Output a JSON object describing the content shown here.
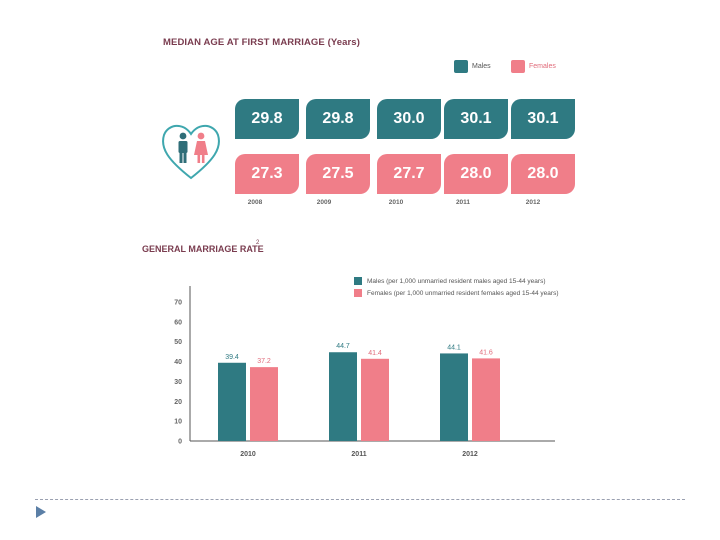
{
  "median_age": {
    "title": "MEDIAN AGE AT FIRST MARRIAGE (Years)",
    "legend": {
      "males": "Males",
      "females": "Females"
    },
    "years": [
      "2008",
      "2009",
      "2010",
      "2011",
      "2012"
    ],
    "males": [
      "29.8",
      "29.8",
      "30.0",
      "30.1",
      "30.1"
    ],
    "females": [
      "27.3",
      "27.5",
      "27.7",
      "28.0",
      "28.0"
    ]
  },
  "rate": {
    "title": "GENERAL MARRIAGE RATE",
    "title_sup": "2",
    "legend": {
      "males": "Males (per 1,000 unmarried resident males aged 15-44 years)",
      "females": "Females (per 1,000 unmarried resident females aged 15-44 years)"
    }
  },
  "colors": {
    "males": "#2f7a82",
    "females": "#f07e89",
    "title": "#7a3c4f",
    "nav": "#5b7fa6"
  },
  "icons": [
    "heart-icon",
    "male-person-icon",
    "female-person-icon",
    "nav-arrow-icon"
  ],
  "chart_data": [
    {
      "type": "table",
      "title": "MEDIAN AGE AT FIRST MARRIAGE (Years)",
      "categories": [
        "2008",
        "2009",
        "2010",
        "2011",
        "2012"
      ],
      "series": [
        {
          "name": "Males",
          "values": [
            29.8,
            29.8,
            30.0,
            30.1,
            30.1
          ]
        },
        {
          "name": "Females",
          "values": [
            27.3,
            27.5,
            27.7,
            28.0,
            28.0
          ]
        }
      ]
    },
    {
      "type": "bar",
      "title": "GENERAL MARRIAGE RATE",
      "categories": [
        "2010",
        "2011",
        "2012"
      ],
      "series": [
        {
          "name": "Males (per 1,000 unmarried resident males aged 15-44 years)",
          "values": [
            39.4,
            44.7,
            44.1
          ]
        },
        {
          "name": "Females (per 1,000 unmarried resident females aged 15-44 years)",
          "values": [
            37.2,
            41.4,
            41.6
          ]
        }
      ],
      "ylim": [
        0,
        70
      ],
      "yticks": [
        0,
        10,
        20,
        30,
        40,
        50,
        60,
        70
      ],
      "grid": false,
      "legend": "top-right"
    }
  ]
}
